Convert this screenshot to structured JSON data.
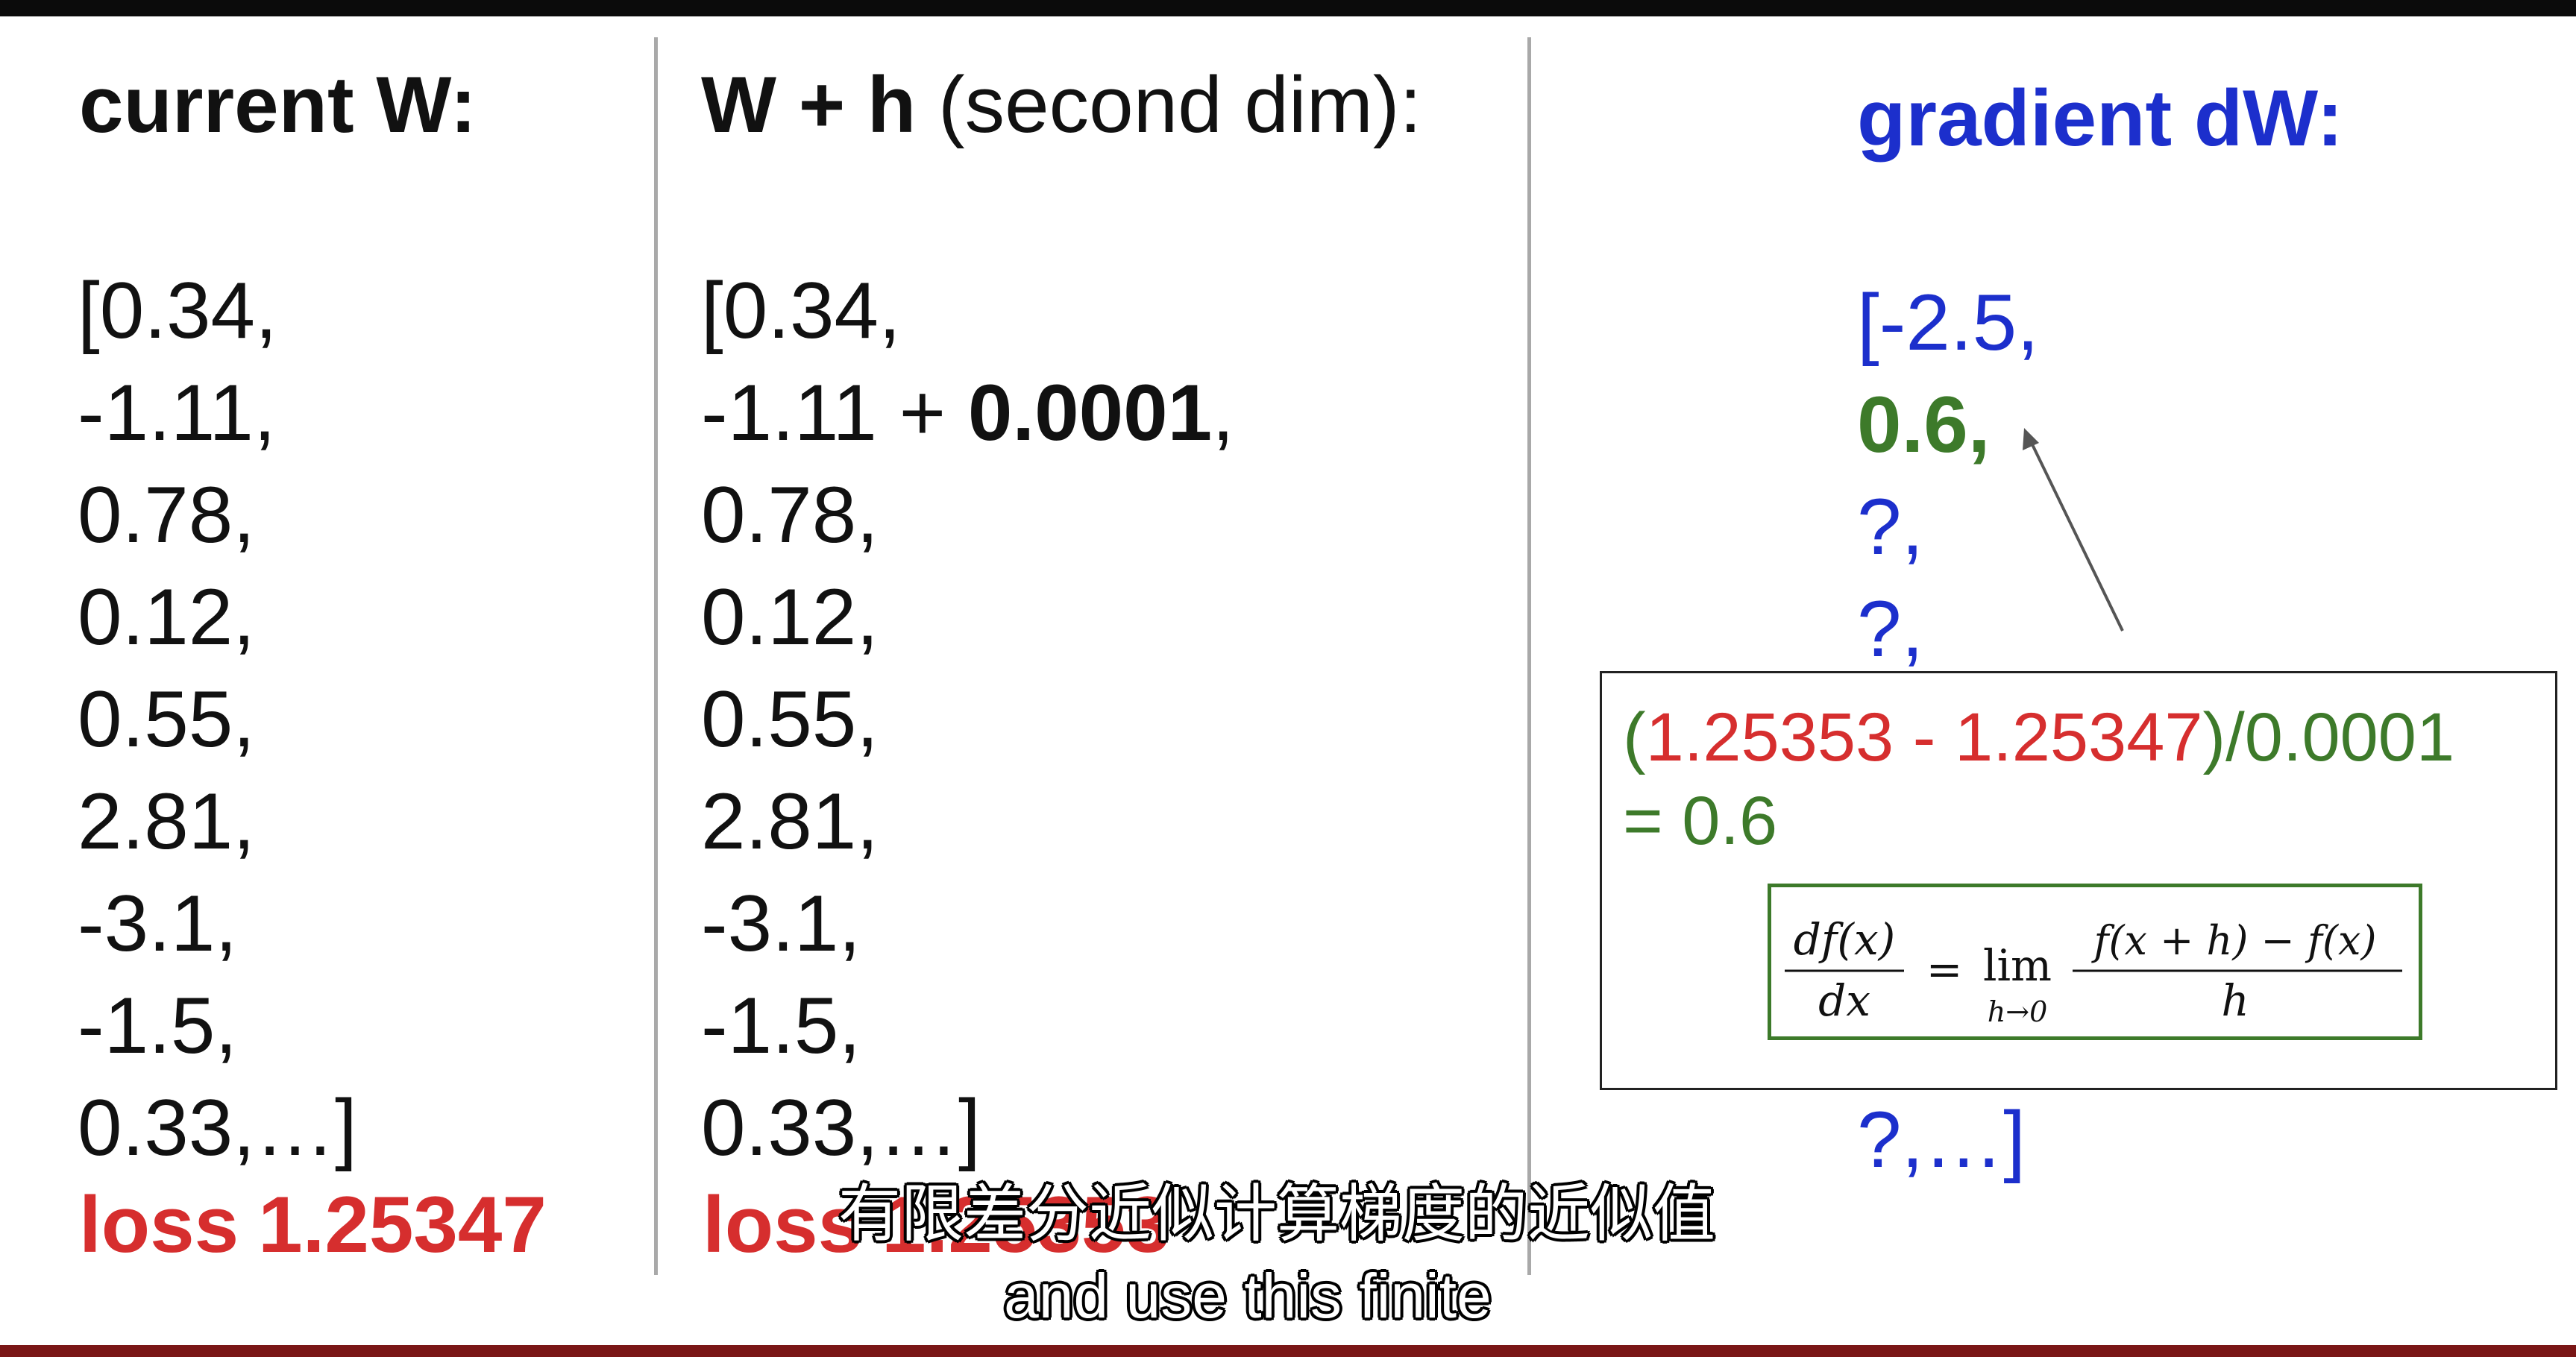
{
  "columns": {
    "current": {
      "title": "current W:",
      "values": [
        "[0.34,",
        "-1.11,",
        "0.78,",
        "0.12,",
        "0.55,",
        "2.81,",
        "-3.1,",
        "-1.5,",
        "0.33,…]"
      ],
      "loss_label": "loss",
      "loss_value": "1.25347"
    },
    "perturbed": {
      "title_bold": "W + h",
      "title_rest": "(second dim):",
      "values": [
        "[0.34,",
        "-1.11 + ",
        "0.78,",
        "0.12,",
        "0.55,",
        "2.81,",
        "-3.1,",
        "-1.5,",
        "0.33,…]"
      ],
      "perturb_value": "0.0001",
      "perturb_suffix": ",",
      "loss_label": "loss",
      "loss_value": "1.25353"
    },
    "gradient": {
      "title": "gradient dW:",
      "values": [
        "[-2.5,",
        "0.6,",
        "?,",
        "?,"
      ],
      "last_value": "?,…]"
    }
  },
  "callout": {
    "calc_open": "(",
    "calc_a": "1.25353",
    "calc_minus": " - ",
    "calc_b": "1.25347",
    "calc_tail": ")/0.0001",
    "calc_result": "= 0.6",
    "formula": {
      "numerator_left": "df(x)",
      "denominator_left": "dx",
      "equals": "=",
      "lim": "lim",
      "lim_sub": "h→0",
      "numerator_right": "f(x + h) − f(x)",
      "denominator_right": "h"
    }
  },
  "subtitles": {
    "zh": "有限差分近似计算梯度的近似值",
    "en": "and use this finite"
  },
  "colors": {
    "loss_red": "#d62e2e",
    "gradient_blue": "#1c2fcc",
    "highlight_green": "#3d7a2a",
    "divider_gray": "#a9a9a9"
  }
}
